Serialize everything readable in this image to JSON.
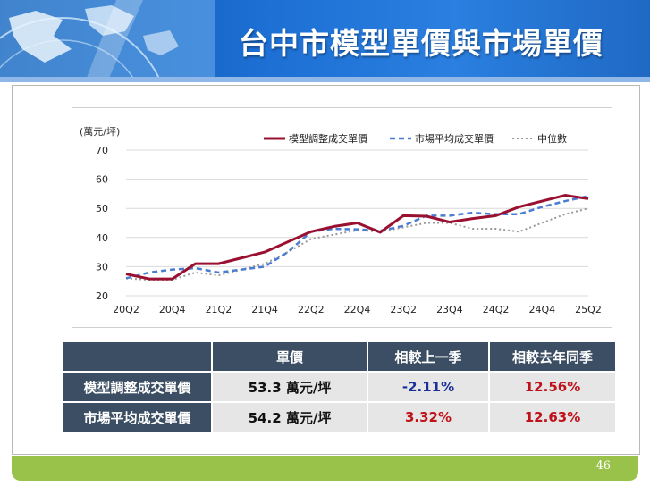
{
  "slide": {
    "title": "台中市模型單價與市場單價",
    "page_number": "46"
  },
  "chart_data": {
    "type": "line",
    "y_unit_label": "(萬元/坪)",
    "ylim": [
      20,
      70
    ],
    "y_ticks": [
      20,
      30,
      40,
      50,
      60,
      70
    ],
    "x": [
      "20Q2",
      "20Q3",
      "20Q4",
      "21Q1",
      "21Q2",
      "21Q3",
      "21Q4",
      "22Q1",
      "22Q2",
      "22Q3",
      "22Q4",
      "23Q1",
      "23Q2",
      "23Q3",
      "23Q4",
      "24Q1",
      "24Q2",
      "24Q3",
      "24Q4",
      "25Q1",
      "25Q2"
    ],
    "x_tick_labels": [
      "20Q2",
      "20Q4",
      "21Q2",
      "21Q4",
      "22Q2",
      "22Q4",
      "23Q2",
      "23Q4",
      "24Q2",
      "24Q4",
      "25Q2"
    ],
    "legend_position": "top",
    "grid": true,
    "series": [
      {
        "name": "模型調整成交單價",
        "color": "#9a1030",
        "dash": "solid",
        "values": [
          27.5,
          25.8,
          25.8,
          31.0,
          31.0,
          33.0,
          35.0,
          38.5,
          42.0,
          43.8,
          45.0,
          41.8,
          47.5,
          47.3,
          45.3,
          46.5,
          47.5,
          50.5,
          52.5,
          54.5,
          53.3
        ]
      },
      {
        "name": "市場平均成交單價",
        "color": "#4a7dd1",
        "dash": "dashed",
        "values": [
          26.0,
          28.0,
          29.0,
          29.5,
          28.0,
          29.0,
          30.0,
          35.0,
          42.0,
          43.0,
          42.8,
          42.3,
          44.0,
          47.5,
          47.5,
          48.5,
          48.0,
          48.0,
          50.5,
          52.5,
          54.2
        ]
      },
      {
        "name": "中位數",
        "color": "#9a9a9a",
        "dash": "dotted",
        "values": [
          26.0,
          25.5,
          25.5,
          28.0,
          27.0,
          29.0,
          31.0,
          35.0,
          39.5,
          41.0,
          42.5,
          42.0,
          43.5,
          45.0,
          45.0,
          43.0,
          43.0,
          42.0,
          45.0,
          48.0,
          50.0
        ]
      }
    ]
  },
  "table": {
    "headers": [
      "",
      "單價",
      "相較上一季",
      "相較去年同季"
    ],
    "rows": [
      {
        "label": "模型調整成交單價",
        "price": "53.3 萬元/坪",
        "qoq": "-2.11%",
        "yoy": "12.56%"
      },
      {
        "label": "市場平均成交單價",
        "price": "54.2 萬元/坪",
        "qoq": "3.32%",
        "yoy": "12.63%"
      }
    ],
    "colors": {
      "header_bg": "#3b4e63",
      "cell_bg": "#e6e6e6",
      "negative": "#1a2f9c",
      "positive": "#c0121b"
    }
  }
}
